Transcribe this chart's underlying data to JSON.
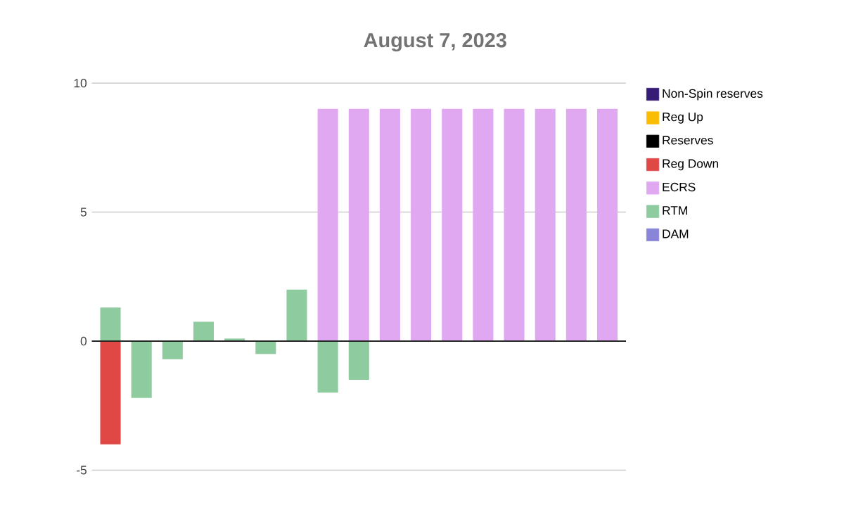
{
  "chart_data": {
    "type": "bar",
    "title": "August 7, 2023",
    "stacked": true,
    "grid": "y",
    "legend": "right",
    "categories": [
      null,
      null,
      null,
      null,
      null,
      null,
      null,
      null,
      null,
      null,
      null,
      null,
      null,
      null,
      null,
      null,
      null
    ],
    "ylim": [
      -5,
      10
    ],
    "yticks": [
      -5,
      0,
      5,
      10
    ],
    "series": [
      {
        "name": "Non-Spin reserves",
        "color": "#351c75",
        "values": [
          null,
          null,
          null,
          null,
          null,
          null,
          null,
          null,
          null,
          null,
          null,
          null,
          null,
          null,
          null,
          null,
          null
        ]
      },
      {
        "name": "Reg Up",
        "color": "#fbbc04",
        "values": [
          null,
          null,
          null,
          null,
          null,
          null,
          null,
          null,
          null,
          null,
          null,
          null,
          null,
          null,
          null,
          null,
          null
        ]
      },
      {
        "name": "Reserves",
        "color": "#000000",
        "values": [
          null,
          null,
          null,
          null,
          null,
          null,
          null,
          null,
          null,
          null,
          null,
          null,
          null,
          null,
          null,
          null,
          null
        ]
      },
      {
        "name": "Reg Down",
        "color": "#e04845",
        "values": [
          -4,
          null,
          null,
          null,
          null,
          null,
          null,
          null,
          null,
          null,
          null,
          null,
          null,
          null,
          null,
          null,
          null
        ]
      },
      {
        "name": "ECRS",
        "color": "#e1a8f2",
        "values": [
          null,
          null,
          null,
          null,
          null,
          null,
          null,
          9,
          9,
          9,
          9,
          9,
          9,
          9,
          9,
          9,
          9
        ]
      },
      {
        "name": "RTM",
        "color": "#8ecb9f",
        "values": [
          1.3,
          -2.2,
          -0.7,
          0.75,
          0.1,
          -0.5,
          2,
          -2,
          -1.5,
          null,
          null,
          null,
          null,
          null,
          null,
          null,
          null
        ]
      },
      {
        "name": "DAM",
        "color": "#8a85d9",
        "values": [
          null,
          null,
          null,
          null,
          null,
          null,
          null,
          null,
          null,
          null,
          null,
          null,
          null,
          null,
          null,
          null,
          null
        ]
      }
    ]
  }
}
